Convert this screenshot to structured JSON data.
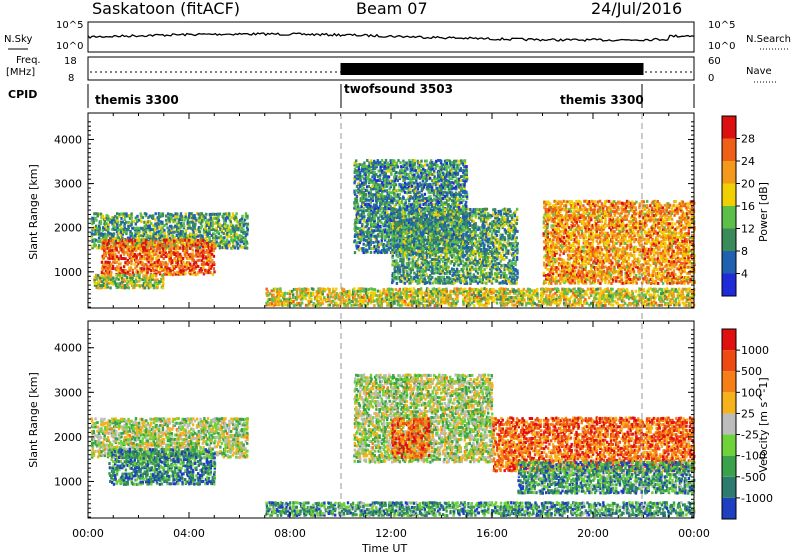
{
  "header": {
    "station": "Saskatoon (fitACF)",
    "beam": "Beam 07",
    "date": "24/Jul/2016"
  },
  "noise_panel": {
    "left_label": "N.Sky",
    "right_label": "N.Search",
    "left_ticks": [
      "10^5",
      "10^0"
    ],
    "right_ticks": [
      "10^5",
      "10^0"
    ]
  },
  "freq_panel": {
    "left_label_line1": "Freq.",
    "left_label_line2": "[MHz]",
    "left_ticks": [
      "18",
      "8"
    ],
    "right_label": "Nave",
    "right_ticks": [
      "60",
      "0"
    ]
  },
  "cpid": {
    "label": "CPID",
    "segments": [
      {
        "name": "themis 3300",
        "start_hour": 0,
        "end_hour": 10
      },
      {
        "name": "twofsound 3503",
        "start_hour": 10,
        "end_hour": 22
      },
      {
        "name": "themis 3300",
        "start_hour": 22,
        "end_hour": 24
      }
    ]
  },
  "chart_data": [
    {
      "type": "heatmap",
      "title": "Power",
      "xlabel": "",
      "ylabel": "Slant Range [km]",
      "xlim_hours": [
        0,
        24
      ],
      "ylim": [
        180,
        4600
      ],
      "yticks": [
        "1000",
        "2000",
        "3000",
        "4000"
      ],
      "colorbar": {
        "label": "Power [dB]",
        "ticks": [
          "4",
          "8",
          "12",
          "16",
          "20",
          "24",
          "28"
        ],
        "colors": [
          "#1f2bd8",
          "#2060b0",
          "#3a8a5a",
          "#5cbf4a",
          "#f0d000",
          "#f39a1d",
          "#ee6018",
          "#dd1010"
        ]
      },
      "echo_regions": [
        {
          "x": [
            0.1,
            6.3
          ],
          "y": [
            1500,
            2300
          ],
          "level": 0.35
        },
        {
          "x": [
            0.5,
            5.0
          ],
          "y": [
            900,
            1700
          ],
          "level": 0.8
        },
        {
          "x": [
            0.2,
            3.0
          ],
          "y": [
            600,
            900
          ],
          "level": 0.5
        },
        {
          "x": [
            7.0,
            24.0
          ],
          "y": [
            200,
            600
          ],
          "level": 0.55
        },
        {
          "x": [
            10.5,
            15.0
          ],
          "y": [
            1400,
            3500
          ],
          "level": 0.3
        },
        {
          "x": [
            12.0,
            17.0
          ],
          "y": [
            700,
            2400
          ],
          "level": 0.35
        },
        {
          "x": [
            18.0,
            24.0
          ],
          "y": [
            700,
            2600
          ],
          "level": 0.7
        }
      ]
    },
    {
      "type": "heatmap",
      "title": "Velocity",
      "xlabel": "Time UT",
      "ylabel": "Slant Range [km]",
      "xlim_hours": [
        0,
        24
      ],
      "ylim": [
        180,
        4600
      ],
      "yticks": [
        "1000",
        "2000",
        "3000",
        "4000"
      ],
      "xticks": [
        "00:00",
        "04:00",
        "08:00",
        "12:00",
        "16:00",
        "20:00",
        "00:00"
      ],
      "colorbar": {
        "label": "Velocity [m s^-1]",
        "ticks": [
          "1000",
          "500",
          "100",
          "25",
          "-25",
          "-100",
          "-500",
          "-1000"
        ],
        "colors": [
          "#1e3fbf",
          "#2c7a70",
          "#3aa24a",
          "#6fd23a",
          "#bcbcbc",
          "#f5b21a",
          "#f57f16",
          "#ee4a12",
          "#e01010"
        ]
      },
      "echo_regions": [
        {
          "x": [
            0.1,
            6.3
          ],
          "y": [
            1500,
            2400
          ],
          "level": 0.45
        },
        {
          "x": [
            0.8,
            5.0
          ],
          "y": [
            900,
            1700
          ],
          "level": 0.2
        },
        {
          "x": [
            7.0,
            24.0
          ],
          "y": [
            200,
            500
          ],
          "level": 0.25
        },
        {
          "x": [
            10.5,
            16.0
          ],
          "y": [
            1400,
            3400
          ],
          "level": 0.45
        },
        {
          "x": [
            12.0,
            13.5
          ],
          "y": [
            1500,
            2400
          ],
          "level": 0.8
        },
        {
          "x": [
            16.0,
            24.0
          ],
          "y": [
            1200,
            2400
          ],
          "level": 0.78
        },
        {
          "x": [
            17.0,
            24.0
          ],
          "y": [
            700,
            1400
          ],
          "level": 0.25
        }
      ]
    }
  ],
  "x_axis": {
    "ticks": [
      "00:00",
      "04:00",
      "08:00",
      "12:00",
      "16:00",
      "20:00",
      "00:00"
    ],
    "label": "Time UT"
  }
}
